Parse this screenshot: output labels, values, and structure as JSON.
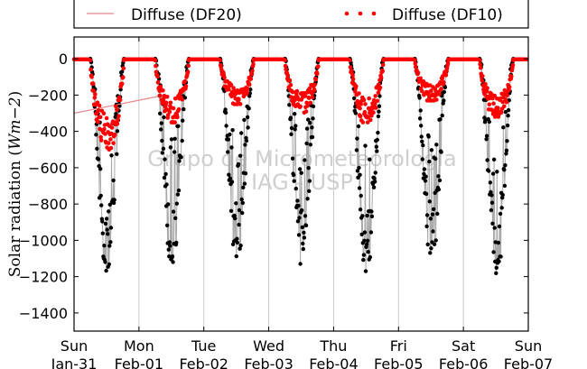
{
  "chart_data": {
    "type": "scatter",
    "title": "",
    "xlabel": "",
    "ylabel": "Solar radiation (Wm−2)",
    "ylabel_parts": {
      "text": "Solar radiation (",
      "math": "Wm−2",
      "close": ")"
    },
    "ylim": [
      -1500,
      120
    ],
    "yticks": [
      0,
      -200,
      -400,
      -600,
      -800,
      -1000,
      -1200,
      -1400
    ],
    "xlim_days": [
      0,
      7
    ],
    "xticks": [
      {
        "day": "Sun",
        "date": "Jan-31"
      },
      {
        "day": "Mon",
        "date": "Feb-01"
      },
      {
        "day": "Tue",
        "date": "Feb-02"
      },
      {
        "day": "Wed",
        "date": "Feb-03"
      },
      {
        "day": "Thu",
        "date": "Feb-04"
      },
      {
        "day": "Fri",
        "date": "Feb-05"
      },
      {
        "day": "Sat",
        "date": "Feb-06"
      },
      {
        "day": "Sun",
        "date": "Feb-07"
      }
    ],
    "grid": "vertical",
    "legend": {
      "placement": "top-outside"
    },
    "series": [
      {
        "name": "Diffuse (DF20)",
        "color": "#e8868b",
        "style": "line"
      },
      {
        "name": "Diffuse (DF10)",
        "color": "#ff0000",
        "style": "dots"
      }
    ],
    "unlabeled_series": [
      {
        "label": "",
        "color": "#000000",
        "style": "dots"
      },
      {
        "label": "",
        "color": "#aaaaaa",
        "style": "line"
      }
    ],
    "daily_peaks": [
      {
        "date": "Jan-31",
        "global_min": -1180,
        "diffuse_min": -500
      },
      {
        "date": "Feb-01",
        "global_min": -1120,
        "diffuse_min": -350
      },
      {
        "date": "Feb-02",
        "global_min": -1100,
        "diffuse_min": -250
      },
      {
        "date": "Feb-03",
        "global_min": -1130,
        "diffuse_min": -300
      },
      {
        "date": "Feb-04",
        "global_min": -1170,
        "diffuse_min": -350
      },
      {
        "date": "Feb-05",
        "global_min": -1110,
        "diffuse_min": -230
      },
      {
        "date": "Feb-06",
        "global_min": -1200,
        "diffuse_min": -320
      }
    ],
    "df20_segment": {
      "x": [
        0,
        1.4
      ],
      "y": [
        -300,
        -200
      ]
    },
    "watermark_lines": [
      "Grupo de Micrometeorologia",
      "IAG - USP"
    ]
  }
}
